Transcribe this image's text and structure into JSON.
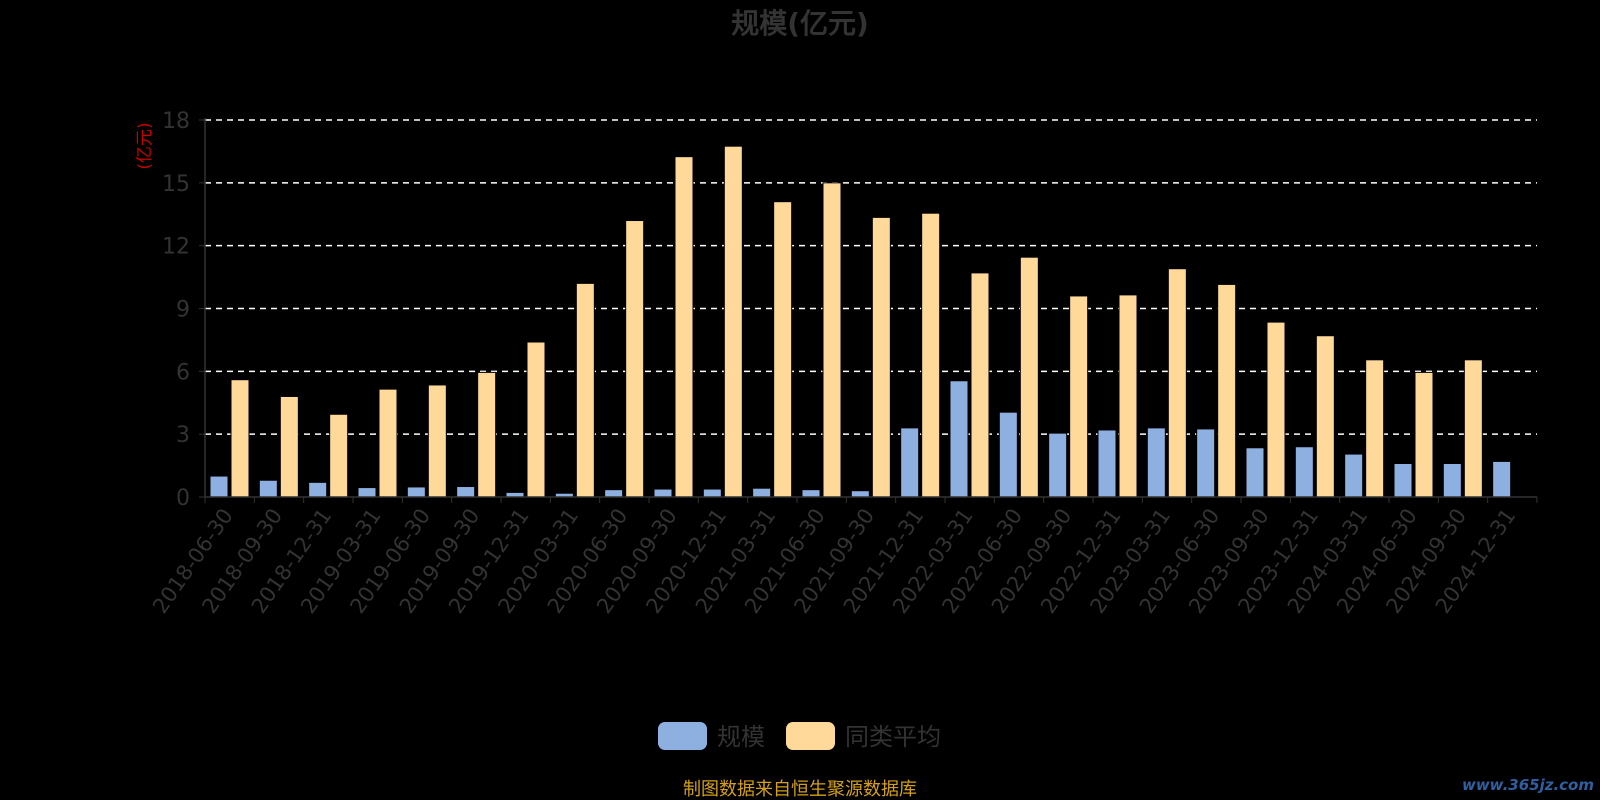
{
  "chart_data": {
    "type": "bar",
    "title": "规模(亿元)",
    "y_unit": "(亿元)",
    "ylim": [
      0,
      18
    ],
    "yticks": [
      0,
      3,
      6,
      9,
      12,
      15,
      18
    ],
    "grid": true,
    "legend_position": "bottom-center",
    "categories": [
      "2018-06-30",
      "2018-09-30",
      "2018-12-31",
      "2019-03-31",
      "2019-06-30",
      "2019-09-30",
      "2019-12-31",
      "2020-03-31",
      "2020-06-30",
      "2020-09-30",
      "2020-12-31",
      "2021-03-31",
      "2021-06-30",
      "2021-09-30",
      "2021-12-31",
      "2022-03-31",
      "2022-06-30",
      "2022-09-30",
      "2022-12-31",
      "2023-03-31",
      "2023-06-30",
      "2023-09-30",
      "2023-12-31",
      "2024-03-31",
      "2024-06-30",
      "2024-09-30",
      "2024-12-31"
    ],
    "series": [
      {
        "name": "规模",
        "color": "#8eb0e0",
        "values": [
          1.0,
          0.8,
          0.7,
          0.45,
          0.48,
          0.5,
          0.22,
          0.18,
          0.35,
          0.38,
          0.38,
          0.42,
          0.35,
          0.3,
          3.3,
          5.55,
          4.05,
          3.05,
          3.2,
          3.3,
          3.25,
          2.35,
          2.4,
          2.05,
          1.6,
          1.6,
          1.7
        ]
      },
      {
        "name": "同类平均",
        "color": "#ffd99a",
        "values": [
          5.6,
          4.8,
          3.95,
          5.15,
          5.35,
          5.95,
          7.4,
          10.2,
          13.2,
          16.25,
          16.75,
          14.1,
          15.0,
          13.35,
          13.55,
          10.7,
          11.45,
          9.6,
          9.65,
          10.9,
          10.15,
          8.35,
          7.7,
          6.55,
          5.95,
          6.55,
          null
        ]
      }
    ]
  },
  "footer_text": "制图数据来自恒生聚源数据库",
  "watermark_text": "www.365jz.com"
}
